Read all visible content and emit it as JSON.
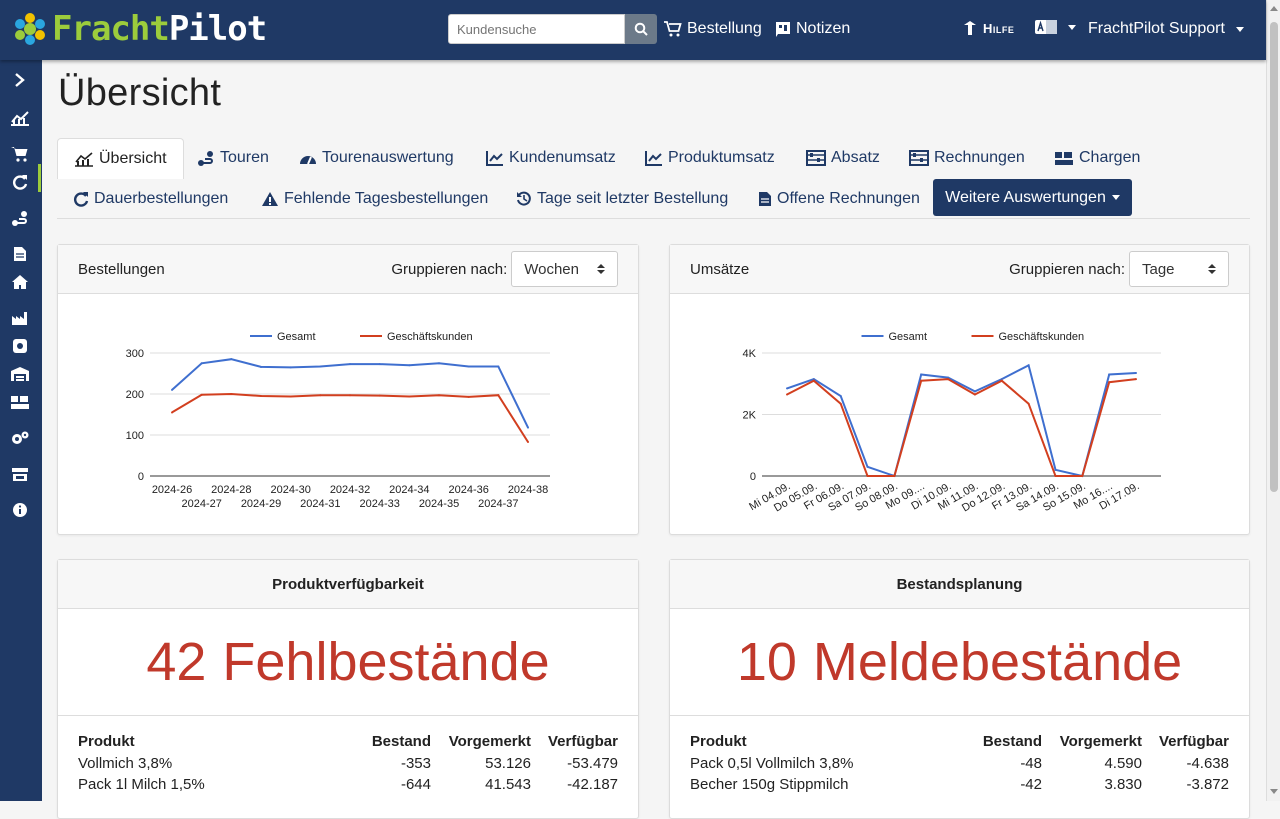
{
  "app": {
    "logo_part1": "Fracht",
    "logo_part2": "Pilot"
  },
  "header": {
    "search_placeholder": "Kundensuche",
    "links": {
      "order": "Bestellung",
      "notes": "Notizen",
      "help": "Hilfe",
      "user": "FrachtPilot Support"
    },
    "icons": [
      "search-icon",
      "cart-icon",
      "notes-icon",
      "help-icon",
      "language-icon"
    ]
  },
  "sidebar": {
    "icons": [
      "expand-icon",
      "chart-icon",
      "cart-icon",
      "refresh-icon",
      "route-icon",
      "document-icon",
      "home-icon",
      "factory-icon",
      "gear-box-icon",
      "warehouse-icon",
      "pallet-icon",
      "cogs-icon",
      "store-icon",
      "info-icon"
    ]
  },
  "page": {
    "title": "Übersicht"
  },
  "tabs": {
    "row1": [
      "Übersicht",
      "Touren",
      "Tourenauswertung",
      "Kundenumsatz",
      "Produktumsatz",
      "Absatz",
      "Rechnungen",
      "Chargen"
    ],
    "row2": [
      "Dauerbestellungen",
      "Fehlende Tagesbestellungen",
      "Tage seit letzter Bestellung",
      "Offene Rechnungen"
    ],
    "more": "Weitere Auswertungen"
  },
  "cards": {
    "orders": {
      "title": "Bestellungen",
      "group_label": "Gruppieren nach:",
      "group_value": "Wochen"
    },
    "revenue": {
      "title": "Umsätze",
      "group_label": "Gruppieren nach:",
      "group_value": "Tage"
    },
    "availability": {
      "title": "Produktverfügbarkeit",
      "count": "42",
      "count_label": "Fehlbestände",
      "columns": [
        "Produkt",
        "Bestand",
        "Vorgemerkt",
        "Verfügbar"
      ],
      "rows": [
        [
          "Vollmich 3,8%",
          "-353",
          "53.126",
          "-53.479"
        ],
        [
          "Pack 1l Milch 1,5%",
          "-644",
          "41.543",
          "-42.187"
        ]
      ]
    },
    "planning": {
      "title": "Bestandsplanung",
      "count": "10",
      "count_label": "Meldebestände",
      "columns": [
        "Produkt",
        "Bestand",
        "Vorgemerkt",
        "Verfügbar"
      ],
      "rows": [
        [
          "Pack 0,5l Vollmilch 3,8%",
          "-48",
          "4.590",
          "-4.638"
        ],
        [
          "Becher 150g Stippmilch",
          "-42",
          "3.830",
          "-3.872"
        ]
      ]
    }
  },
  "colors": {
    "navy": "#1f3965",
    "green": "#9ccc3c",
    "series_total": "#3f6fcf",
    "series_business": "#d23f1f",
    "alert": "#c0392b"
  },
  "chart_data": [
    {
      "type": "line",
      "legend": [
        "Gesamt",
        "Geschäftskunden"
      ],
      "legend_position": "top",
      "x": [
        "2024-26",
        "2024-27",
        "2024-28",
        "2024-29",
        "2024-30",
        "2024-31",
        "2024-32",
        "2024-33",
        "2024-34",
        "2024-35",
        "2024-36",
        "2024-37",
        "2024-38"
      ],
      "series": [
        {
          "name": "Gesamt",
          "values": [
            210,
            275,
            285,
            266,
            265,
            267,
            273,
            273,
            270,
            275,
            267,
            267,
            118
          ]
        },
        {
          "name": "Geschäftskunden",
          "values": [
            155,
            198,
            200,
            195,
            194,
            197,
            197,
            196,
            194,
            197,
            193,
            197,
            83
          ]
        }
      ],
      "yticks": [
        "0",
        "100",
        "200",
        "300"
      ],
      "ylim": [
        0,
        300
      ],
      "grid": true
    },
    {
      "type": "line",
      "legend": [
        "Gesamt",
        "Geschäftskunden"
      ],
      "legend_position": "top",
      "x": [
        "Mi 04.09.",
        "Do 05.09.",
        "Fr 06.09.",
        "Sa 07.09.",
        "So 08.09.",
        "Mo 09....",
        "Di 10.09.",
        "Mi 11.09.",
        "Do 12.09.",
        "Fr 13.09.",
        "Sa 14.09.",
        "So 15.09.",
        "Mo 16....",
        "Di 17.09."
      ],
      "series": [
        {
          "name": "Gesamt",
          "values": [
            2850,
            3150,
            2600,
            300,
            0,
            3300,
            3200,
            2750,
            3150,
            3600,
            200,
            0,
            3300,
            3350
          ]
        },
        {
          "name": "Geschäftskunden",
          "values": [
            2650,
            3100,
            2350,
            0,
            0,
            3100,
            3150,
            2650,
            3100,
            2350,
            0,
            0,
            3050,
            3150
          ]
        }
      ],
      "yticks": [
        "0",
        "2K",
        "4K"
      ],
      "ylim": [
        0,
        4000
      ],
      "grid": true
    }
  ]
}
